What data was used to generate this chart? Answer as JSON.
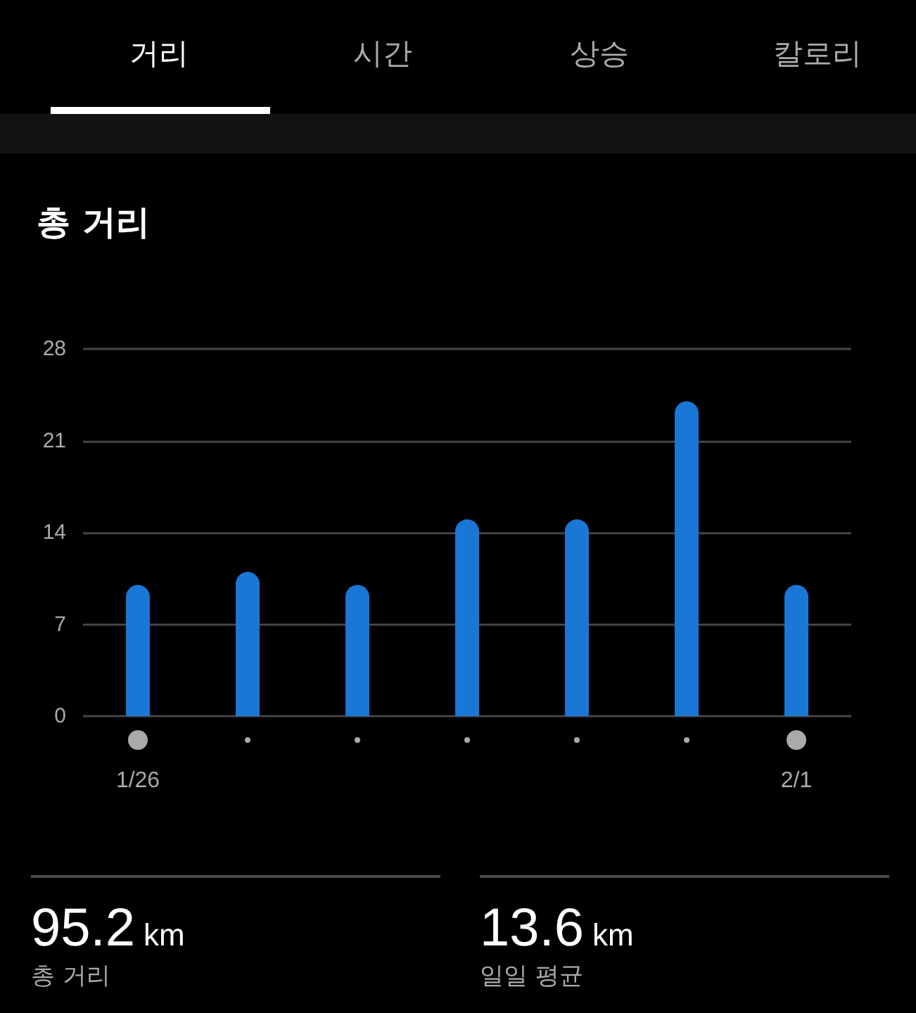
{
  "chart_data": {
    "type": "bar",
    "title": "총 거리",
    "categories": [
      "1/26",
      null,
      null,
      null,
      null,
      null,
      "2/1"
    ],
    "values": [
      10,
      11,
      10,
      15,
      15,
      24,
      10
    ],
    "color": "#1a77d6",
    "ylim": [
      0,
      28
    ],
    "yticks": [
      0,
      7,
      14,
      21,
      28
    ],
    "grid": "y",
    "annotations": [
      "거리",
      "시간",
      "상승",
      "칼로리",
      "95.2",
      "km",
      "총 거리",
      "13.6",
      "km",
      "일일 평균"
    ]
  }
}
